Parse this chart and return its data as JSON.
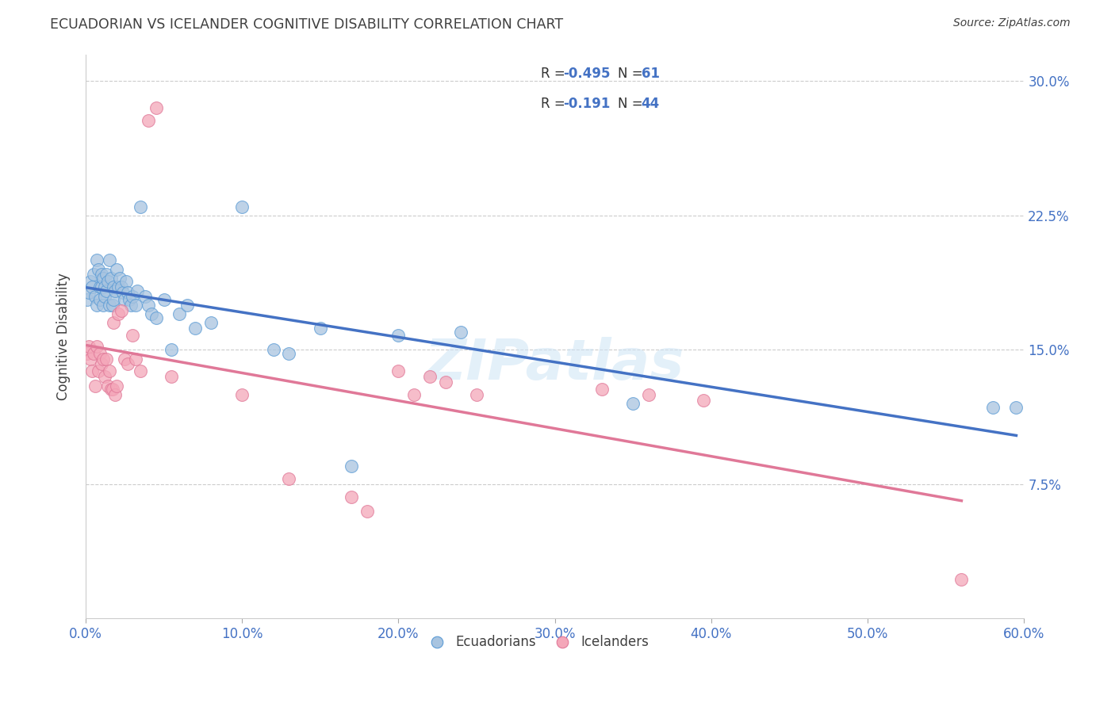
{
  "title": "ECUADORIAN VS ICELANDER COGNITIVE DISABILITY CORRELATION CHART",
  "source": "Source: ZipAtlas.com",
  "ylabel_label": "Cognitive Disability",
  "legend_blue_label": "Ecuadorians",
  "legend_pink_label": "Icelanders",
  "blue_color": "#a8c4e0",
  "pink_color": "#f4a7b9",
  "blue_line_color": "#4472c4",
  "pink_line_color": "#e07898",
  "blue_edge_color": "#5b9bd5",
  "pink_edge_color": "#e07898",
  "watermark": "ZIPatlas",
  "background_color": "#ffffff",
  "grid_color": "#cccccc",
  "title_color": "#404040",
  "axis_label_color": "#4472c4",
  "text_color_dark": "#333333",
  "xlim": [
    0.0,
    0.6
  ],
  "ylim": [
    0.0,
    0.315
  ],
  "x_ticks": [
    0.0,
    0.1,
    0.2,
    0.3,
    0.4,
    0.5,
    0.6
  ],
  "y_ticks": [
    0.075,
    0.15,
    0.225,
    0.3
  ],
  "blue_scatter_x": [
    0.001,
    0.002,
    0.003,
    0.004,
    0.005,
    0.006,
    0.007,
    0.007,
    0.008,
    0.009,
    0.009,
    0.01,
    0.01,
    0.011,
    0.011,
    0.012,
    0.012,
    0.013,
    0.013,
    0.014,
    0.015,
    0.015,
    0.016,
    0.017,
    0.018,
    0.018,
    0.019,
    0.02,
    0.021,
    0.022,
    0.023,
    0.024,
    0.025,
    0.026,
    0.027,
    0.028,
    0.029,
    0.03,
    0.032,
    0.033,
    0.035,
    0.038,
    0.04,
    0.042,
    0.045,
    0.05,
    0.055,
    0.06,
    0.065,
    0.07,
    0.08,
    0.1,
    0.12,
    0.13,
    0.15,
    0.17,
    0.2,
    0.24,
    0.35,
    0.58,
    0.595
  ],
  "blue_scatter_y": [
    0.178,
    0.182,
    0.188,
    0.185,
    0.192,
    0.18,
    0.2,
    0.175,
    0.195,
    0.185,
    0.178,
    0.192,
    0.185,
    0.19,
    0.175,
    0.185,
    0.18,
    0.192,
    0.183,
    0.188,
    0.2,
    0.175,
    0.19,
    0.175,
    0.185,
    0.178,
    0.183,
    0.195,
    0.185,
    0.19,
    0.185,
    0.182,
    0.178,
    0.188,
    0.182,
    0.178,
    0.175,
    0.18,
    0.175,
    0.183,
    0.23,
    0.18,
    0.175,
    0.17,
    0.168,
    0.178,
    0.15,
    0.17,
    0.175,
    0.162,
    0.165,
    0.23,
    0.15,
    0.148,
    0.162,
    0.085,
    0.158,
    0.16,
    0.12,
    0.118,
    0.118
  ],
  "pink_scatter_x": [
    0.001,
    0.002,
    0.003,
    0.004,
    0.005,
    0.006,
    0.007,
    0.008,
    0.009,
    0.01,
    0.011,
    0.012,
    0.013,
    0.014,
    0.015,
    0.016,
    0.017,
    0.018,
    0.019,
    0.02,
    0.021,
    0.023,
    0.025,
    0.027,
    0.03,
    0.032,
    0.035,
    0.04,
    0.045,
    0.055,
    0.1,
    0.13,
    0.17,
    0.18,
    0.2,
    0.21,
    0.22,
    0.23,
    0.25,
    0.33,
    0.36,
    0.395,
    0.56
  ],
  "pink_scatter_y": [
    0.148,
    0.152,
    0.145,
    0.138,
    0.148,
    0.13,
    0.152,
    0.138,
    0.148,
    0.142,
    0.145,
    0.135,
    0.145,
    0.13,
    0.138,
    0.128,
    0.128,
    0.165,
    0.125,
    0.13,
    0.17,
    0.172,
    0.145,
    0.142,
    0.158,
    0.145,
    0.138,
    0.278,
    0.285,
    0.135,
    0.125,
    0.078,
    0.068,
    0.06,
    0.138,
    0.125,
    0.135,
    0.132,
    0.125,
    0.128,
    0.125,
    0.122,
    0.022
  ]
}
